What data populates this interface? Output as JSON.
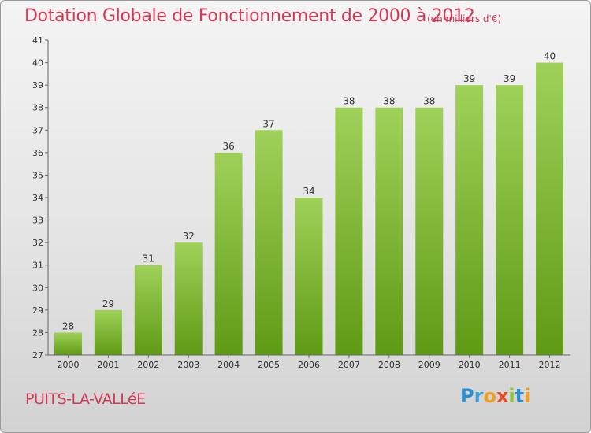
{
  "title": "Dotation Globale de Fonctionnement de 2000 à 2012",
  "subtitle": "(en milliers d'€)",
  "place": "PUITS-LA-VALLéE",
  "brand": {
    "letters": [
      "P",
      "r",
      "o",
      "x",
      "i",
      "t",
      "i"
    ]
  },
  "colors": {
    "title": "#d23a56",
    "bar_top": "#9fd15a",
    "bar_bottom": "#5f9a14",
    "axis": "#666666",
    "label": "#333333",
    "brand": [
      "#2a8fd2",
      "#3aa0d8",
      "#f0a020",
      "#e84a2a",
      "#8cc63f",
      "#2a8fd2",
      "#f0a020"
    ]
  },
  "chart_data": {
    "type": "bar",
    "categories": [
      "2000",
      "2001",
      "2002",
      "2003",
      "2004",
      "2005",
      "2006",
      "2007",
      "2008",
      "2009",
      "2010",
      "2011",
      "2012"
    ],
    "values": [
      28,
      29,
      31,
      32,
      36,
      37,
      34,
      38,
      38,
      38,
      39,
      39,
      40
    ],
    "ylim": [
      27,
      41
    ],
    "yticks": [
      27,
      28,
      29,
      30,
      31,
      32,
      33,
      34,
      35,
      36,
      37,
      38,
      39,
      40,
      41
    ],
    "title": "Dotation Globale de Fonctionnement de 2000 à 2012",
    "subtitle": "(en milliers d'€)",
    "xlabel": "",
    "ylabel": "",
    "grid": false,
    "legend": "none"
  }
}
